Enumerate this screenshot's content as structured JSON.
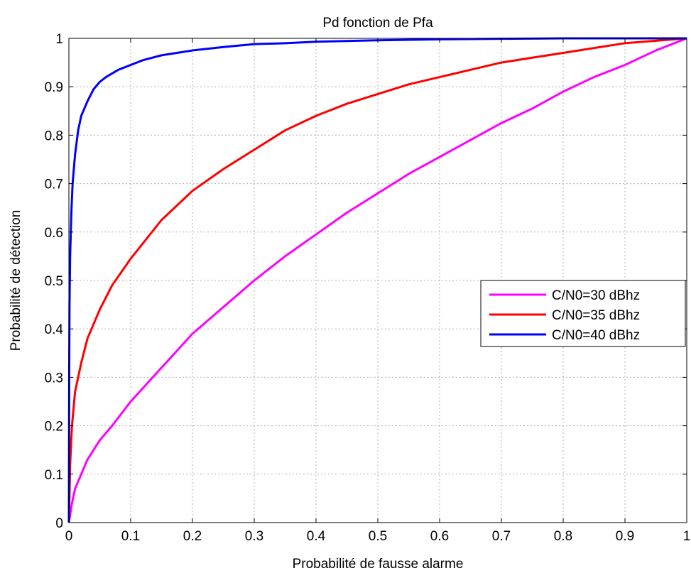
{
  "chart_data": {
    "type": "line",
    "title": "Pd fonction de Pfa",
    "xlabel": "Probabilité de fausse alarme",
    "ylabel": "Probabilité de détection",
    "xlim": [
      0,
      1
    ],
    "ylim": [
      0,
      1
    ],
    "xticks": [
      "0",
      "0.1",
      "0.2",
      "0.3",
      "0.4",
      "0.5",
      "0.6",
      "0.7",
      "0.8",
      "0.9",
      "1"
    ],
    "yticks": [
      "0",
      "0.1",
      "0.2",
      "0.3",
      "0.4",
      "0.5",
      "0.6",
      "0.7",
      "0.8",
      "0.9",
      "1"
    ],
    "grid": true,
    "legend_position": "right",
    "series": [
      {
        "name": "C/N0=30 dBhz",
        "color": "#ff00ff",
        "x": [
          0,
          0.005,
          0.01,
          0.02,
          0.03,
          0.05,
          0.07,
          0.1,
          0.15,
          0.2,
          0.25,
          0.3,
          0.35,
          0.4,
          0.45,
          0.5,
          0.55,
          0.6,
          0.65,
          0.7,
          0.75,
          0.8,
          0.85,
          0.9,
          0.95,
          1.0
        ],
        "y": [
          0,
          0.04,
          0.07,
          0.1,
          0.13,
          0.17,
          0.2,
          0.25,
          0.32,
          0.39,
          0.445,
          0.5,
          0.55,
          0.595,
          0.64,
          0.68,
          0.72,
          0.755,
          0.79,
          0.825,
          0.855,
          0.89,
          0.92,
          0.945,
          0.975,
          1.0
        ]
      },
      {
        "name": "C/N0=35 dBhz",
        "color": "#ff0000",
        "x": [
          0,
          0.002,
          0.005,
          0.01,
          0.02,
          0.03,
          0.05,
          0.07,
          0.1,
          0.15,
          0.2,
          0.25,
          0.3,
          0.35,
          0.4,
          0.45,
          0.5,
          0.55,
          0.6,
          0.65,
          0.7,
          0.75,
          0.8,
          0.85,
          0.9,
          0.95,
          1.0
        ],
        "y": [
          0,
          0.12,
          0.2,
          0.27,
          0.33,
          0.38,
          0.44,
          0.49,
          0.545,
          0.625,
          0.685,
          0.73,
          0.77,
          0.81,
          0.84,
          0.865,
          0.885,
          0.905,
          0.92,
          0.935,
          0.95,
          0.96,
          0.97,
          0.98,
          0.99,
          0.995,
          1.0
        ]
      },
      {
        "name": "C/N0=40 dBhz",
        "color": "#0000ff",
        "x": [
          0,
          0.0005,
          0.001,
          0.002,
          0.004,
          0.006,
          0.01,
          0.015,
          0.02,
          0.03,
          0.04,
          0.05,
          0.06,
          0.08,
          0.1,
          0.12,
          0.15,
          0.2,
          0.25,
          0.3,
          0.35,
          0.4,
          0.5,
          0.6,
          0.7,
          0.8,
          0.9,
          1.0
        ],
        "y": [
          0,
          0.3,
          0.45,
          0.55,
          0.64,
          0.7,
          0.76,
          0.81,
          0.84,
          0.87,
          0.895,
          0.91,
          0.92,
          0.935,
          0.945,
          0.955,
          0.965,
          0.975,
          0.982,
          0.988,
          0.99,
          0.993,
          0.996,
          0.998,
          0.999,
          1.0,
          1.0,
          1.0
        ]
      }
    ]
  }
}
